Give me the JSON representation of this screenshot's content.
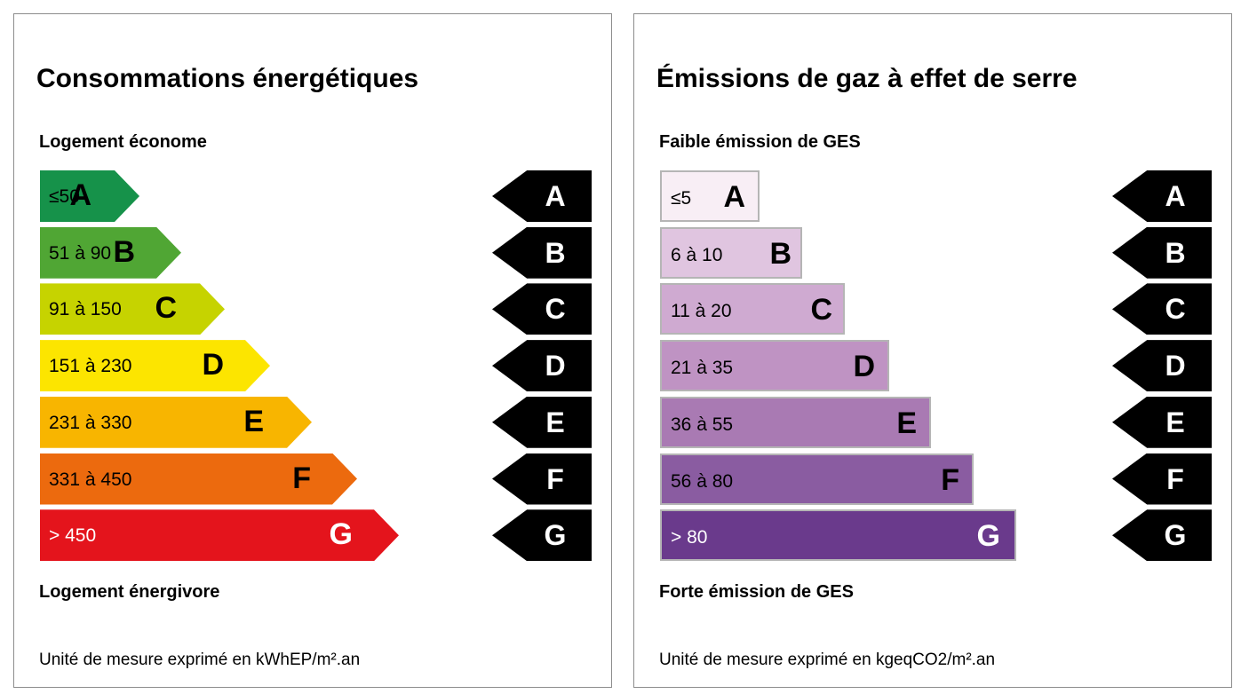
{
  "energy": {
    "title": "Consommations énergétiques",
    "top_label": "Logement économe",
    "bottom_label": "Logement énergivore",
    "unit": "Unité de mesure exprimé en kWhEP/m².an",
    "classes": [
      {
        "range": "≤50",
        "letter": "A",
        "color": "#16924a"
      },
      {
        "range": "51 à 90",
        "letter": "B",
        "color": "#50a634"
      },
      {
        "range": "91 à 150",
        "letter": "C",
        "color": "#c6d300"
      },
      {
        "range": "151 à 230",
        "letter": "D",
        "color": "#fce500"
      },
      {
        "range": "231 à 330",
        "letter": "E",
        "color": "#f8b500"
      },
      {
        "range": "331 à 450",
        "letter": "F",
        "color": "#ec6a0e"
      },
      {
        "range": "> 450",
        "letter": "G",
        "color": "#e4141c"
      }
    ],
    "markers": [
      "A",
      "B",
      "C",
      "D",
      "E",
      "F",
      "G"
    ]
  },
  "ges": {
    "title": "Émissions de gaz à effet de serre",
    "top_label": "Faible émission de GES",
    "bottom_label": "Forte émission de GES",
    "unit": "Unité de mesure exprimé en kgeqCO2/m².an",
    "classes": [
      {
        "range": "≤5",
        "letter": "A",
        "color": "#f8eef5"
      },
      {
        "range": "6 à 10",
        "letter": "B",
        "color": "#e0c5e0"
      },
      {
        "range": "11 à 20",
        "letter": "C",
        "color": "#cfaad1"
      },
      {
        "range": "21 à 35",
        "letter": "D",
        "color": "#bf93c3"
      },
      {
        "range": "36 à 55",
        "letter": "E",
        "color": "#a97ab3"
      },
      {
        "range": "56 à 80",
        "letter": "F",
        "color": "#8a5ca1"
      },
      {
        "range": "> 80",
        "letter": "G",
        "color": "#6a3a8c"
      }
    ],
    "markers": [
      "A",
      "B",
      "C",
      "D",
      "E",
      "F",
      "G"
    ]
  }
}
